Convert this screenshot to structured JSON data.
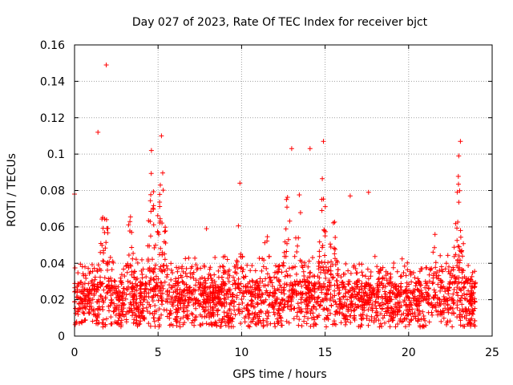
{
  "chart_data": {
    "type": "scatter",
    "title": "Day 027 of 2023, Rate Of TEC Index for receiver bjct",
    "xlabel": "GPS time / hours",
    "ylabel": "ROTI / TECUs",
    "xlim": [
      0,
      25
    ],
    "ylim": [
      0,
      0.16
    ],
    "xticks": [
      0,
      5,
      10,
      15,
      20,
      25
    ],
    "xtick_labels": [
      "0",
      "5",
      "10",
      "15",
      "20",
      "25"
    ],
    "yticks": [
      0,
      0.02,
      0.04,
      0.06,
      0.08,
      0.1,
      0.12,
      0.14,
      0.16
    ],
    "ytick_labels": [
      "0",
      "0.02",
      "0.04",
      "0.06",
      "0.08",
      "0.1",
      "0.12",
      "0.14",
      "0.16"
    ],
    "grid": true,
    "marker": "+",
    "marker_color": "#ff0000",
    "series": [
      {
        "name": "ROTI",
        "x_range": [
          0,
          24
        ],
        "note_points": "dense cloud of samples; notable outliers listed below",
        "outliers": [
          {
            "x": 1.9,
            "y": 0.149
          },
          {
            "x": 1.4,
            "y": 0.112
          },
          {
            "x": 5.2,
            "y": 0.11
          },
          {
            "x": 4.6,
            "y": 0.102
          },
          {
            "x": 13.0,
            "y": 0.103
          },
          {
            "x": 14.1,
            "y": 0.103
          },
          {
            "x": 14.9,
            "y": 0.107
          },
          {
            "x": 23.1,
            "y": 0.107
          },
          {
            "x": 23.0,
            "y": 0.099
          },
          {
            "x": 0.0,
            "y": 0.078
          },
          {
            "x": 17.6,
            "y": 0.079
          },
          {
            "x": 16.5,
            "y": 0.077
          },
          {
            "x": 9.9,
            "y": 0.084
          },
          {
            "x": 7.9,
            "y": 0.059
          }
        ],
        "activity_peaks": [
          {
            "x": 1.8,
            "height": 0.079
          },
          {
            "x": 3.3,
            "height": 0.07
          },
          {
            "x": 4.6,
            "height": 0.09
          },
          {
            "x": 5.2,
            "height": 0.1
          },
          {
            "x": 9.9,
            "height": 0.066
          },
          {
            "x": 11.5,
            "height": 0.06
          },
          {
            "x": 12.7,
            "height": 0.085
          },
          {
            "x": 13.4,
            "height": 0.083
          },
          {
            "x": 14.9,
            "height": 0.09
          },
          {
            "x": 15.5,
            "height": 0.074
          },
          {
            "x": 21.5,
            "height": 0.06
          },
          {
            "x": 23.0,
            "height": 0.1
          }
        ]
      }
    ]
  }
}
